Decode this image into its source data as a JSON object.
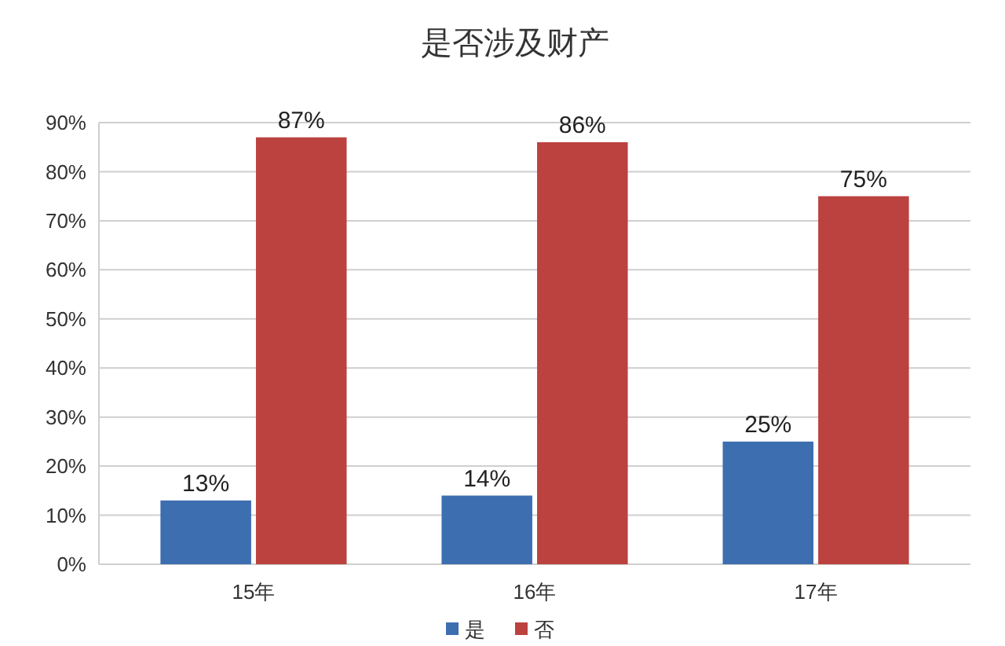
{
  "chart_data": {
    "type": "bar",
    "title": "是否涉及财产",
    "categories": [
      "15年",
      "16年",
      "17年"
    ],
    "series": [
      {
        "name": "是",
        "color": "#3d6eb0",
        "values": [
          13,
          14,
          25
        ],
        "value_labels": [
          "13%",
          "14%",
          "25%"
        ]
      },
      {
        "name": "否",
        "color": "#bb423f",
        "values": [
          87,
          86,
          75
        ],
        "value_labels": [
          "87%",
          "86%",
          "75%"
        ]
      }
    ],
    "ylim": [
      0,
      90
    ],
    "yticks": [
      {
        "value": 0,
        "label": "0%"
      },
      {
        "value": 10,
        "label": "10%"
      },
      {
        "value": 20,
        "label": "20%"
      },
      {
        "value": 30,
        "label": "30%"
      },
      {
        "value": 40,
        "label": "40%"
      },
      {
        "value": 50,
        "label": "50%"
      },
      {
        "value": 60,
        "label": "60%"
      },
      {
        "value": 70,
        "label": "70%"
      },
      {
        "value": 80,
        "label": "80%"
      },
      {
        "value": 90,
        "label": "90%"
      }
    ],
    "grid": "y",
    "legend": "bottom"
  }
}
